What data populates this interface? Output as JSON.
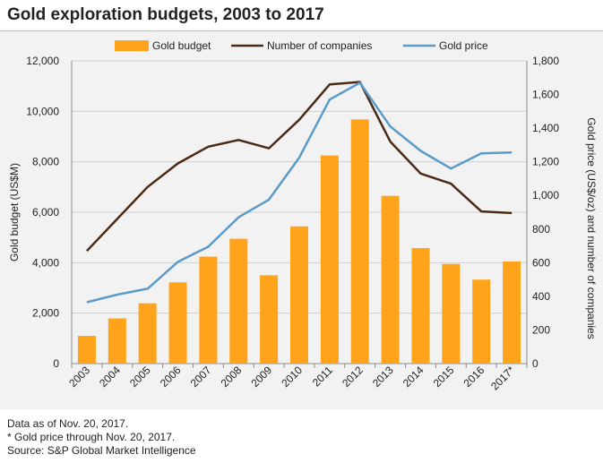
{
  "title": "Gold exploration budgets, 2003 to 2017",
  "footnotes": [
    "Data as of Nov. 20, 2017.",
    "* Gold price through Nov. 20, 2017.",
    "Source: S&P Global Market Intelligence"
  ],
  "colors": {
    "bar": "#FFA31A",
    "companies_line": "#4A2A14",
    "price_line": "#5B9BC9",
    "panel": "#F2F2F2",
    "grid": "#D0D0D0",
    "text": "#222222"
  },
  "chart_data": {
    "type": "bar",
    "title": "Gold exploration budgets, 2003 to 2017",
    "categories": [
      "2003",
      "2004",
      "2005",
      "2006",
      "2007",
      "2008",
      "2009",
      "2010",
      "2011",
      "2012",
      "2013",
      "2014",
      "2015",
      "2016",
      "2017*"
    ],
    "ylabel": "Gold budget (US$M)",
    "y2label": "Gold price (US$/oz) and number of companies",
    "ylim": [
      0,
      12000
    ],
    "y2lim": [
      0,
      1800
    ],
    "yticks": [
      "0",
      "2,000",
      "4,000",
      "6,000",
      "8,000",
      "10,000",
      "12,000"
    ],
    "y2ticks": [
      "0",
      "200",
      "400",
      "600",
      "800",
      "1,000",
      "1,200",
      "1,400",
      "1,600",
      "1,800"
    ],
    "grid": true,
    "legend_position": "top",
    "series": [
      {
        "name": "Gold budget",
        "type": "bar",
        "axis": "left",
        "values": [
          1100,
          1790,
          2390,
          3220,
          4240,
          4950,
          3500,
          5440,
          8250,
          9680,
          6650,
          4580,
          3950,
          3330,
          4050
        ]
      },
      {
        "name": "Number of companies",
        "type": "line",
        "axis": "right",
        "values": [
          670,
          860,
          1050,
          1190,
          1290,
          1330,
          1280,
          1450,
          1660,
          1675,
          1320,
          1130,
          1070,
          905,
          895
        ]
      },
      {
        "name": "Gold price",
        "type": "line",
        "axis": "right",
        "values": [
          365,
          410,
          445,
          605,
          695,
          870,
          975,
          1225,
          1570,
          1670,
          1410,
          1265,
          1160,
          1250,
          1255
        ]
      }
    ]
  }
}
